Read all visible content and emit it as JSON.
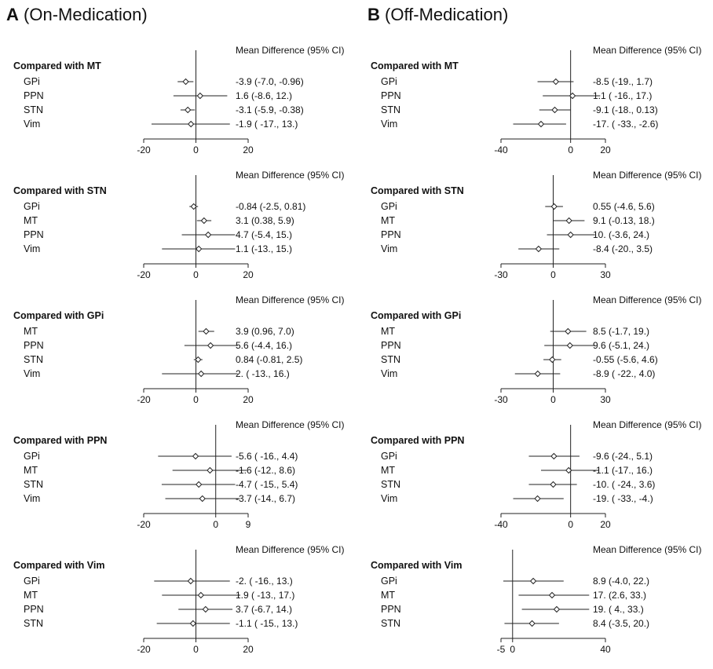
{
  "columns": [
    {
      "letter": "A",
      "label": "(On-Medication)"
    },
    {
      "letter": "B",
      "label": "(Off-Medication)"
    }
  ],
  "header_label": "Mean Difference (95% CI)",
  "chart_data": [
    {
      "type": "forest",
      "column": "A",
      "title": "Compared with MT",
      "xlim": [
        -20,
        20
      ],
      "ticks": [
        {
          "v": -20,
          "label": "-20"
        },
        {
          "v": 0,
          "label": "0"
        },
        {
          "v": 20,
          "label": "20"
        }
      ],
      "rows": [
        {
          "label": "GPi",
          "est": -3.9,
          "lo": -7.0,
          "hi": -0.96,
          "text": "-3.9 (-7.0, -0.96)"
        },
        {
          "label": "PPN",
          "est": 1.6,
          "lo": -8.6,
          "hi": 12,
          "text": "1.6 (-8.6, 12.)"
        },
        {
          "label": "STN",
          "est": -3.1,
          "lo": -5.9,
          "hi": -0.38,
          "text": "-3.1 (-5.9, -0.38)"
        },
        {
          "label": "Vim",
          "est": -1.9,
          "lo": -17,
          "hi": 13,
          "text": "-1.9 ( -17., 13.)"
        }
      ]
    },
    {
      "type": "forest",
      "column": "A",
      "title": "Compared with STN",
      "xlim": [
        -20,
        20
      ],
      "ticks": [
        {
          "v": -20,
          "label": "-20"
        },
        {
          "v": 0,
          "label": "0"
        },
        {
          "v": 20,
          "label": "20"
        }
      ],
      "rows": [
        {
          "label": "GPi",
          "est": -0.84,
          "lo": -2.5,
          "hi": 0.81,
          "text": "-0.84 (-2.5, 0.81)"
        },
        {
          "label": "MT",
          "est": 3.1,
          "lo": 0.38,
          "hi": 5.9,
          "text": "3.1 (0.38, 5.9)"
        },
        {
          "label": "PPN",
          "est": 4.7,
          "lo": -5.4,
          "hi": 15,
          "text": "4.7 (-5.4, 15.)"
        },
        {
          "label": "Vim",
          "est": 1.1,
          "lo": -13,
          "hi": 15,
          "text": "1.1 (-13., 15.)"
        }
      ]
    },
    {
      "type": "forest",
      "column": "A",
      "title": "Compared with GPi",
      "xlim": [
        -20,
        20
      ],
      "ticks": [
        {
          "v": -20,
          "label": "-20"
        },
        {
          "v": 0,
          "label": "0"
        },
        {
          "v": 20,
          "label": "20"
        }
      ],
      "rows": [
        {
          "label": "MT",
          "est": 3.9,
          "lo": 0.96,
          "hi": 7.0,
          "text": "3.9 (0.96, 7.0)"
        },
        {
          "label": "PPN",
          "est": 5.6,
          "lo": -4.4,
          "hi": 16,
          "text": "5.6 (-4.4, 16.)"
        },
        {
          "label": "STN",
          "est": 0.84,
          "lo": -0.81,
          "hi": 2.5,
          "text": "0.84 (-0.81, 2.5)"
        },
        {
          "label": "Vim",
          "est": 2,
          "lo": -13,
          "hi": 16,
          "text": "2. ( -13., 16.)"
        }
      ]
    },
    {
      "type": "forest",
      "column": "A",
      "title": "Compared with PPN",
      "xlim": [
        -20,
        9
      ],
      "ticks": [
        {
          "v": -20,
          "label": "-20"
        },
        {
          "v": 0,
          "label": "0"
        },
        {
          "v": 9,
          "label": "9"
        }
      ],
      "rows": [
        {
          "label": "GPi",
          "est": -5.6,
          "lo": -16,
          "hi": 4.4,
          "text": "-5.6 ( -16., 4.4)"
        },
        {
          "label": "MT",
          "est": -1.6,
          "lo": -12,
          "hi": 8.6,
          "text": "-1.6 (-12., 8.6)"
        },
        {
          "label": "STN",
          "est": -4.7,
          "lo": -15,
          "hi": 5.4,
          "text": "-4.7 ( -15., 5.4)"
        },
        {
          "label": "Vim",
          "est": -3.7,
          "lo": -14,
          "hi": 6.7,
          "text": "-3.7 (-14., 6.7)"
        }
      ]
    },
    {
      "type": "forest",
      "column": "A",
      "title": "Compared with Vim",
      "xlim": [
        -20,
        20
      ],
      "ticks": [
        {
          "v": -20,
          "label": "-20"
        },
        {
          "v": 0,
          "label": "0"
        },
        {
          "v": 20,
          "label": "20"
        }
      ],
      "rows": [
        {
          "label": "GPi",
          "est": -2,
          "lo": -16,
          "hi": 13,
          "text": "-2. ( -16., 13.)"
        },
        {
          "label": "MT",
          "est": 1.9,
          "lo": -13,
          "hi": 17,
          "text": "1.9 ( -13., 17.)"
        },
        {
          "label": "PPN",
          "est": 3.7,
          "lo": -6.7,
          "hi": 14,
          "text": "3.7 (-6.7, 14.)"
        },
        {
          "label": "STN",
          "est": -1.1,
          "lo": -15,
          "hi": 13,
          "text": "-1.1 ( -15., 13.)"
        }
      ]
    },
    {
      "type": "forest",
      "column": "B",
      "title": "Compared with MT",
      "xlim": [
        -40,
        20
      ],
      "ticks": [
        {
          "v": -40,
          "label": "-40"
        },
        {
          "v": 0,
          "label": "0"
        },
        {
          "v": 20,
          "label": "20"
        }
      ],
      "rows": [
        {
          "label": "GPi",
          "est": -8.5,
          "lo": -19,
          "hi": 1.7,
          "text": "-8.5 (-19., 1.7)"
        },
        {
          "label": "PPN",
          "est": 1.1,
          "lo": -16,
          "hi": 17,
          "text": "1.1 ( -16., 17.)"
        },
        {
          "label": "STN",
          "est": -9.1,
          "lo": -18,
          "hi": 0.13,
          "text": "-9.1 (-18., 0.13)"
        },
        {
          "label": "Vim",
          "est": -17,
          "lo": -33,
          "hi": -2.6,
          "text": "-17. ( -33., -2.6)"
        }
      ]
    },
    {
      "type": "forest",
      "column": "B",
      "title": "Compared with STN",
      "xlim": [
        -30,
        30
      ],
      "ticks": [
        {
          "v": -30,
          "label": "-30"
        },
        {
          "v": 0,
          "label": "0"
        },
        {
          "v": 30,
          "label": "30"
        }
      ],
      "rows": [
        {
          "label": "GPi",
          "est": 0.55,
          "lo": -4.6,
          "hi": 5.6,
          "text": "0.55 (-4.6, 5.6)"
        },
        {
          "label": "MT",
          "est": 9.1,
          "lo": -0.13,
          "hi": 18,
          "text": "9.1 (-0.13, 18.)"
        },
        {
          "label": "PPN",
          "est": 10,
          "lo": -3.6,
          "hi": 24,
          "text": "10. (-3.6, 24.)"
        },
        {
          "label": "Vim",
          "est": -8.4,
          "lo": -20,
          "hi": 3.5,
          "text": "-8.4 (-20., 3.5)"
        }
      ]
    },
    {
      "type": "forest",
      "column": "B",
      "title": "Compared with GPi",
      "xlim": [
        -30,
        30
      ],
      "ticks": [
        {
          "v": -30,
          "label": "-30"
        },
        {
          "v": 0,
          "label": "0"
        },
        {
          "v": 30,
          "label": "30"
        }
      ],
      "rows": [
        {
          "label": "MT",
          "est": 8.5,
          "lo": -1.7,
          "hi": 19,
          "text": "8.5 (-1.7, 19.)"
        },
        {
          "label": "PPN",
          "est": 9.6,
          "lo": -5.1,
          "hi": 24,
          "text": "9.6 (-5.1, 24.)"
        },
        {
          "label": "STN",
          "est": -0.55,
          "lo": -5.6,
          "hi": 4.6,
          "text": "-0.55 (-5.6, 4.6)"
        },
        {
          "label": "Vim",
          "est": -8.9,
          "lo": -22,
          "hi": 4.0,
          "text": "-8.9 ( -22., 4.0)"
        }
      ]
    },
    {
      "type": "forest",
      "column": "B",
      "title": "Compared with PPN",
      "xlim": [
        -40,
        20
      ],
      "ticks": [
        {
          "v": -40,
          "label": "-40"
        },
        {
          "v": 0,
          "label": "0"
        },
        {
          "v": 20,
          "label": "20"
        }
      ],
      "rows": [
        {
          "label": "GPi",
          "est": -9.6,
          "lo": -24,
          "hi": 5.1,
          "text": "-9.6 (-24., 5.1)"
        },
        {
          "label": "MT",
          "est": -1.1,
          "lo": -17,
          "hi": 16,
          "text": "-1.1 (-17., 16.)"
        },
        {
          "label": "STN",
          "est": -10,
          "lo": -24,
          "hi": 3.6,
          "text": "-10. ( -24., 3.6)"
        },
        {
          "label": "Vim",
          "est": -19,
          "lo": -33,
          "hi": -4,
          "text": "-19. ( -33., -4.)"
        }
      ]
    },
    {
      "type": "forest",
      "column": "B",
      "title": "Compared with Vim",
      "xlim": [
        -5,
        40
      ],
      "ticks": [
        {
          "v": -5,
          "label": "-5"
        },
        {
          "v": 0,
          "label": "0"
        },
        {
          "v": 40,
          "label": "40"
        }
      ],
      "rows": [
        {
          "label": "GPi",
          "est": 8.9,
          "lo": -4.0,
          "hi": 22,
          "text": "8.9 (-4.0, 22.)"
        },
        {
          "label": "MT",
          "est": 17,
          "lo": 2.6,
          "hi": 33,
          "text": "17. (2.6, 33.)"
        },
        {
          "label": "PPN",
          "est": 19,
          "lo": 4,
          "hi": 33,
          "text": "19. ( 4., 33.)"
        },
        {
          "label": "STN",
          "est": 8.4,
          "lo": -3.5,
          "hi": 20,
          "text": "8.4 (-3.5, 20.)"
        }
      ]
    }
  ]
}
